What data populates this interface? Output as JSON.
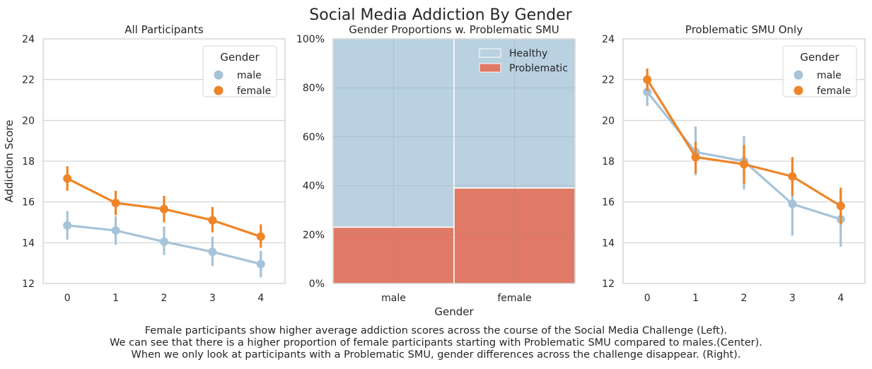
{
  "title": "Social Media Addiction By Gender",
  "caption": {
    "line1": "Female participants show higher average addiction scores across the course of the Social Media Challenge (Left).",
    "line2": "We can see that there is a higher proportion of female participants starting with Problematic SMU compared to males.(Center).",
    "line3": "When we only look at participants with a Problematic SMU, gender differences across the challenge disappear. (Right)."
  },
  "colors": {
    "male": "#a6c3d8",
    "female": "#ef8428",
    "healthy": "#b9d1e0",
    "problematic": "#e07a66",
    "grid": "#cccccc"
  },
  "chart_data": [
    {
      "type": "line",
      "title": "All Participants",
      "xlabel": "",
      "ylabel": "Addiction Score",
      "x": [
        0,
        1,
        2,
        3,
        4
      ],
      "ylim": [
        12,
        24
      ],
      "yticks": [
        12,
        14,
        16,
        18,
        20,
        22,
        24
      ],
      "grid": true,
      "legend": {
        "title": "Gender",
        "placement": "top-right"
      },
      "series": [
        {
          "name": "male",
          "color": "#a6c3d8",
          "values": [
            14.85,
            14.6,
            14.05,
            13.55,
            12.95
          ],
          "ci_low": [
            14.15,
            13.9,
            13.4,
            12.85,
            12.3
          ],
          "ci_high": [
            15.55,
            15.3,
            14.8,
            14.3,
            13.6
          ]
        },
        {
          "name": "female",
          "color": "#ef8428",
          "values": [
            17.15,
            15.95,
            15.65,
            15.1,
            14.3
          ],
          "ci_low": [
            16.55,
            15.35,
            15.0,
            14.5,
            13.75
          ],
          "ci_high": [
            17.75,
            16.55,
            16.3,
            15.75,
            14.9
          ]
        }
      ]
    },
    {
      "type": "bar",
      "title": "Gender Proportions w. Problematic SMU",
      "xlabel": "Gender",
      "ylabel": "",
      "categories": [
        "male",
        "female"
      ],
      "ylim": [
        0,
        1
      ],
      "yticks": [
        "0%",
        "20%",
        "40%",
        "60%",
        "80%",
        "100%"
      ],
      "stacked": true,
      "legend": {
        "placement": "top-right"
      },
      "series": [
        {
          "name": "Healthy",
          "color": "#b9d1e0",
          "values": [
            0.77,
            0.61
          ]
        },
        {
          "name": "Problematic",
          "color": "#e07a66",
          "values": [
            0.23,
            0.39
          ]
        }
      ]
    },
    {
      "type": "line",
      "title": "Problematic SMU Only",
      "xlabel": "",
      "ylabel": "",
      "x": [
        0,
        1,
        2,
        3,
        4
      ],
      "ylim": [
        12,
        24
      ],
      "yticks": [
        12,
        14,
        16,
        18,
        20,
        22,
        24
      ],
      "grid": true,
      "legend": {
        "title": "Gender",
        "placement": "top-right"
      },
      "series": [
        {
          "name": "male",
          "color": "#a6c3d8",
          "values": [
            21.4,
            18.45,
            18.0,
            15.9,
            15.15
          ],
          "ci_low": [
            20.7,
            17.3,
            16.6,
            14.35,
            13.8
          ],
          "ci_high": [
            22.05,
            19.7,
            19.25,
            17.3,
            16.55
          ]
        },
        {
          "name": "female",
          "color": "#ef8428",
          "values": [
            22.0,
            18.2,
            17.85,
            17.25,
            15.8
          ],
          "ci_low": [
            21.45,
            17.4,
            16.9,
            16.3,
            14.9
          ],
          "ci_high": [
            22.55,
            18.95,
            18.8,
            18.2,
            16.7
          ]
        }
      ]
    }
  ]
}
